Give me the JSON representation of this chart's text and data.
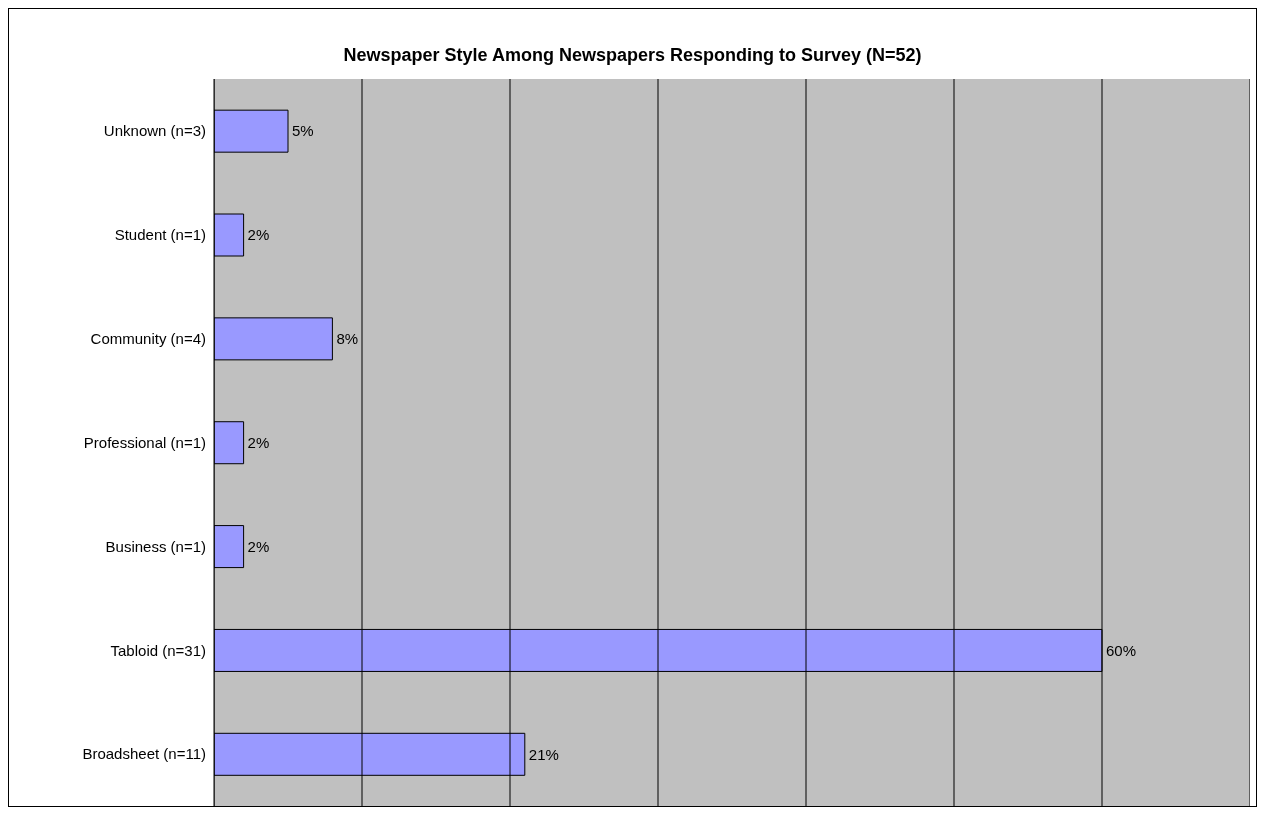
{
  "chart_data": {
    "type": "bar",
    "orientation": "horizontal",
    "title": "Newspaper Style Among Newspapers Responding to Survey (N=52)",
    "categories": [
      "Unknown (n=3)",
      "Student (n=1)",
      "Community (n=4)",
      "Professional (n=1)",
      "Business (n=1)",
      "Tabloid (n=31)",
      "Broadsheet (n=11)"
    ],
    "values": [
      5,
      2,
      8,
      2,
      2,
      60,
      21
    ],
    "value_labels": [
      "5%",
      "2%",
      "8%",
      "2%",
      "2%",
      "60%",
      "21%"
    ],
    "color": "#9999ff",
    "xlim": [
      0,
      70
    ],
    "xticks": [
      {
        "value": 0,
        "label": null
      },
      {
        "value": 10,
        "label": null
      },
      {
        "value": 20,
        "label": null
      },
      {
        "value": 30,
        "label": null
      },
      {
        "value": 40,
        "label": null
      },
      {
        "value": 50,
        "label": null
      },
      {
        "value": 60,
        "label": null
      },
      {
        "value": 70,
        "label": null
      }
    ],
    "tick_labels": "y",
    "grid": "x"
  }
}
